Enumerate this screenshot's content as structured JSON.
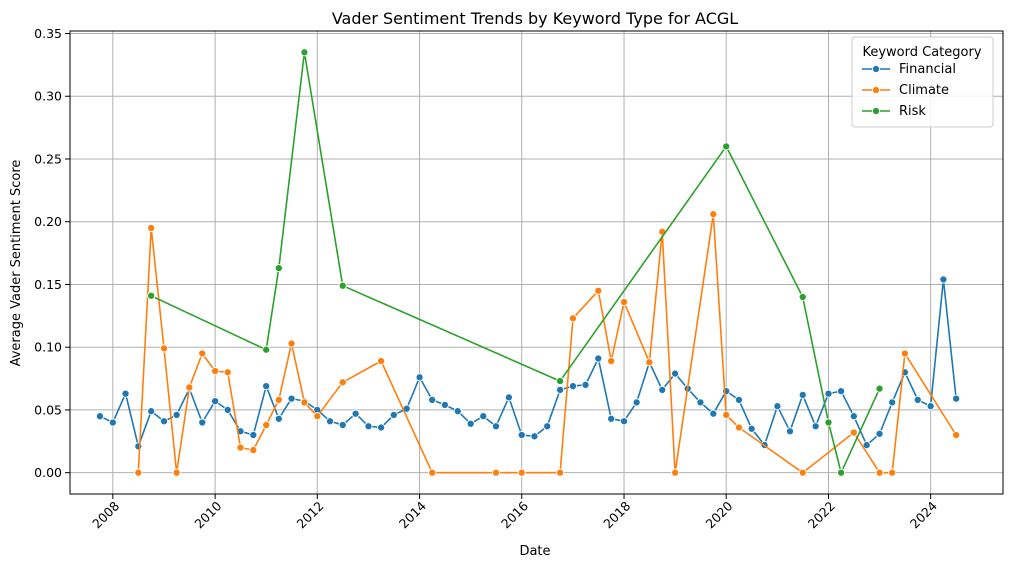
{
  "chart_data": {
    "type": "line",
    "title": "Vader Sentiment Trends by Keyword Type for ACGL",
    "xlabel": "Date",
    "ylabel": "Average Vader Sentiment Score",
    "xlim": [
      "2007-03-01",
      "2025-06-01"
    ],
    "ylim": [
      -0.017,
      0.352
    ],
    "x_ticks": [
      {
        "date": "2008-01-01",
        "label": "2008"
      },
      {
        "date": "2010-01-01",
        "label": "2010"
      },
      {
        "date": "2012-01-01",
        "label": "2012"
      },
      {
        "date": "2014-01-01",
        "label": "2014"
      },
      {
        "date": "2016-01-01",
        "label": "2016"
      },
      {
        "date": "2018-01-01",
        "label": "2018"
      },
      {
        "date": "2020-01-01",
        "label": "2020"
      },
      {
        "date": "2022-01-01",
        "label": "2022"
      },
      {
        "date": "2024-01-01",
        "label": "2024"
      }
    ],
    "y_ticks": [
      {
        "value": 0.0,
        "label": "0.00"
      },
      {
        "value": 0.05,
        "label": "0.05"
      },
      {
        "value": 0.1,
        "label": "0.10"
      },
      {
        "value": 0.15,
        "label": "0.15"
      },
      {
        "value": 0.2,
        "label": "0.20"
      },
      {
        "value": 0.25,
        "label": "0.25"
      },
      {
        "value": 0.3,
        "label": "0.30"
      },
      {
        "value": 0.35,
        "label": "0.35"
      }
    ],
    "grid": true,
    "legend": {
      "title": "Keyword Category",
      "placement": "top-right"
    },
    "series": [
      {
        "name": "Financial",
        "color": "#1f77b4",
        "points": [
          [
            "2007-10-01",
            0.045
          ],
          [
            "2008-01-01",
            0.04
          ],
          [
            "2008-04-01",
            0.063
          ],
          [
            "2008-07-01",
            0.021
          ],
          [
            "2008-10-01",
            0.049
          ],
          [
            "2009-01-01",
            0.041
          ],
          [
            "2009-04-01",
            0.046
          ],
          [
            "2009-07-01",
            0.067
          ],
          [
            "2009-10-01",
            0.04
          ],
          [
            "2010-01-01",
            0.057
          ],
          [
            "2010-04-01",
            0.05
          ],
          [
            "2010-07-01",
            0.033
          ],
          [
            "2010-10-01",
            0.03
          ],
          [
            "2011-01-01",
            0.069
          ],
          [
            "2011-04-01",
            0.043
          ],
          [
            "2011-07-01",
            0.059
          ],
          [
            "2011-10-01",
            0.057
          ],
          [
            "2012-01-01",
            0.05
          ],
          [
            "2012-04-01",
            0.041
          ],
          [
            "2012-07-01",
            0.038
          ],
          [
            "2012-10-01",
            0.047
          ],
          [
            "2013-01-01",
            0.037
          ],
          [
            "2013-04-01",
            0.036
          ],
          [
            "2013-07-01",
            0.046
          ],
          [
            "2013-10-01",
            0.051
          ],
          [
            "2014-01-01",
            0.076
          ],
          [
            "2014-04-01",
            0.058
          ],
          [
            "2014-07-01",
            0.054
          ],
          [
            "2014-10-01",
            0.049
          ],
          [
            "2015-01-01",
            0.039
          ],
          [
            "2015-04-01",
            0.045
          ],
          [
            "2015-07-01",
            0.037
          ],
          [
            "2015-10-01",
            0.06
          ],
          [
            "2016-01-01",
            0.03
          ],
          [
            "2016-04-01",
            0.029
          ],
          [
            "2016-07-01",
            0.037
          ],
          [
            "2016-10-01",
            0.066
          ],
          [
            "2017-01-01",
            0.069
          ],
          [
            "2017-04-01",
            0.07
          ],
          [
            "2017-07-01",
            0.091
          ],
          [
            "2017-10-01",
            0.043
          ],
          [
            "2018-01-01",
            0.041
          ],
          [
            "2018-04-01",
            0.056
          ],
          [
            "2018-07-01",
            0.088
          ],
          [
            "2018-10-01",
            0.066
          ],
          [
            "2019-01-01",
            0.079
          ],
          [
            "2019-04-01",
            0.067
          ],
          [
            "2019-07-01",
            0.056
          ],
          [
            "2019-10-01",
            0.047
          ],
          [
            "2020-01-01",
            0.065
          ],
          [
            "2020-04-01",
            0.058
          ],
          [
            "2020-07-01",
            0.035
          ],
          [
            "2020-10-01",
            0.022
          ],
          [
            "2021-01-01",
            0.053
          ],
          [
            "2021-04-01",
            0.033
          ],
          [
            "2021-07-01",
            0.062
          ],
          [
            "2021-10-01",
            0.037
          ],
          [
            "2022-01-01",
            0.063
          ],
          [
            "2022-04-01",
            0.065
          ],
          [
            "2022-07-01",
            0.045
          ],
          [
            "2022-10-01",
            0.022
          ],
          [
            "2023-01-01",
            0.031
          ],
          [
            "2023-04-01",
            0.056
          ],
          [
            "2023-07-01",
            0.08
          ],
          [
            "2023-10-01",
            0.058
          ],
          [
            "2024-01-01",
            0.053
          ],
          [
            "2024-04-01",
            0.154
          ],
          [
            "2024-07-01",
            0.059
          ]
        ]
      },
      {
        "name": "Climate",
        "color": "#ff7f0e",
        "points": [
          [
            "2008-07-01",
            0.0
          ],
          [
            "2008-10-01",
            0.195
          ],
          [
            "2009-01-01",
            0.099
          ],
          [
            "2009-04-01",
            0.0
          ],
          [
            "2009-07-01",
            0.068
          ],
          [
            "2009-10-01",
            0.095
          ],
          [
            "2010-01-01",
            0.081
          ],
          [
            "2010-04-01",
            0.08
          ],
          [
            "2010-07-01",
            0.02
          ],
          [
            "2010-10-01",
            0.018
          ],
          [
            "2011-01-01",
            0.038
          ],
          [
            "2011-04-01",
            0.058
          ],
          [
            "2011-07-01",
            0.103
          ],
          [
            "2011-10-01",
            0.056
          ],
          [
            "2012-01-01",
            0.045
          ],
          [
            "2012-07-01",
            0.072
          ],
          [
            "2013-04-01",
            0.089
          ],
          [
            "2014-04-01",
            0.0
          ],
          [
            "2015-07-01",
            0.0
          ],
          [
            "2016-01-01",
            0.0
          ],
          [
            "2016-10-01",
            0.0
          ],
          [
            "2017-01-01",
            0.123
          ],
          [
            "2017-07-01",
            0.145
          ],
          [
            "2017-10-01",
            0.089
          ],
          [
            "2018-01-01",
            0.136
          ],
          [
            "2018-07-01",
            0.088
          ],
          [
            "2018-10-01",
            0.192
          ],
          [
            "2019-01-01",
            0.0
          ],
          [
            "2019-10-01",
            0.206
          ],
          [
            "2020-01-01",
            0.046
          ],
          [
            "2020-04-01",
            0.036
          ],
          [
            "2021-07-01",
            0.0
          ],
          [
            "2022-07-01",
            0.032
          ],
          [
            "2023-01-01",
            0.0
          ],
          [
            "2023-04-01",
            0.0
          ],
          [
            "2023-07-01",
            0.095
          ],
          [
            "2024-07-01",
            0.03
          ]
        ]
      },
      {
        "name": "Risk",
        "color": "#2ca02c",
        "points": [
          [
            "2008-10-01",
            0.141
          ],
          [
            "2011-01-01",
            0.098
          ],
          [
            "2011-04-01",
            0.163
          ],
          [
            "2011-10-01",
            0.335
          ],
          [
            "2012-07-01",
            0.149
          ],
          [
            "2016-10-01",
            0.073
          ],
          [
            "2020-01-01",
            0.26
          ],
          [
            "2021-07-01",
            0.14
          ],
          [
            "2022-01-01",
            0.04
          ],
          [
            "2022-04-01",
            0.0
          ],
          [
            "2023-01-01",
            0.067
          ]
        ]
      }
    ]
  }
}
